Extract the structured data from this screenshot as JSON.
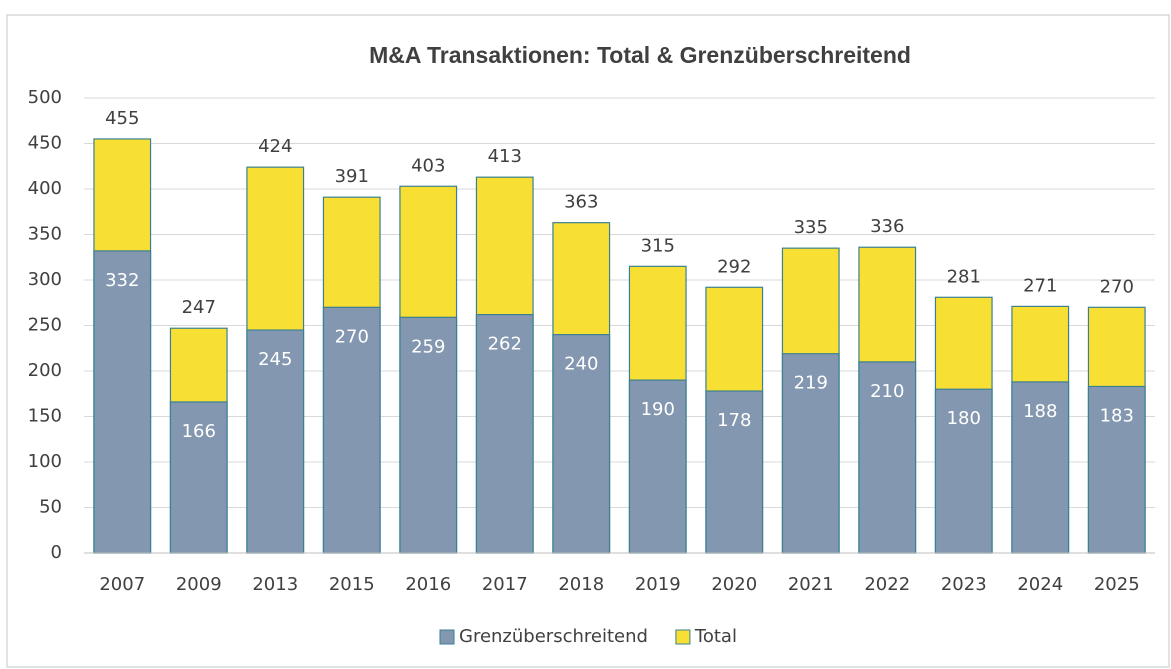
{
  "chart_data": {
    "type": "bar",
    "title": "M&A Transaktionen: Total & Grenzüberschreitend",
    "categories": [
      "2007",
      "2009",
      "2013",
      "2015",
      "2016",
      "2017",
      "2018",
      "2019",
      "2020",
      "2021",
      "2022",
      "2023",
      "2024",
      "2025"
    ],
    "series": [
      {
        "name": "Grenzüberschreitend",
        "color": "#8497b0",
        "values": [
          332,
          166,
          245,
          270,
          259,
          262,
          240,
          190,
          178,
          219,
          210,
          180,
          188,
          183
        ]
      },
      {
        "name": "Total",
        "color": "#f8df34",
        "values": [
          455,
          247,
          424,
          391,
          403,
          413,
          363,
          315,
          292,
          335,
          336,
          281,
          271,
          270
        ]
      }
    ],
    "ylim": [
      0,
      500
    ],
    "yticks": [
      0,
      50,
      100,
      150,
      200,
      250,
      300,
      350,
      400,
      450,
      500
    ],
    "grid": true,
    "legend": "bottom"
  }
}
